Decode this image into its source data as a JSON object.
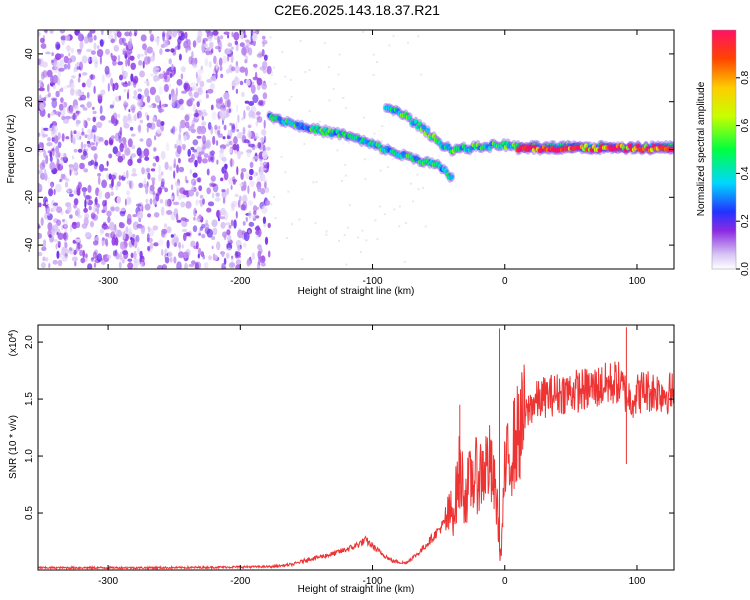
{
  "title": "C2E6.2025.143.18.37.R21",
  "chart_data": [
    {
      "type": "heatmap",
      "xlabel": "Height of straight line (km)",
      "ylabel": "Frequency (Hz)",
      "xlim": [
        -353,
        128
      ],
      "ylim": [
        -50,
        50
      ],
      "xticks": [
        -300,
        -200,
        -100,
        0,
        100
      ],
      "yticks": [
        -40,
        -20,
        0,
        20,
        40
      ],
      "colorbar": {
        "label": "Normalized spectral amplitude",
        "range": [
          0.0,
          1.0
        ],
        "ticks": [
          "0.0",
          "0.2",
          "0.4",
          "0.6",
          "0.8"
        ],
        "tick_values": [
          0.0,
          0.2,
          0.4,
          0.6,
          0.8
        ]
      },
      "noise_region": [
        -353,
        -178
      ],
      "traces": [
        {
          "points": [
            [
              -178,
              14
            ],
            [
              -150,
              9
            ],
            [
              -120,
              6
            ],
            [
              -100,
              2
            ],
            [
              -80,
              -2
            ],
            [
              -60,
              -5
            ],
            [
              -50,
              -7
            ],
            [
              -40,
              -12
            ]
          ],
          "amplitude": 0.45
        },
        {
          "points": [
            [
              -90,
              18
            ],
            [
              -75,
              14
            ],
            [
              -60,
              8
            ],
            [
              -50,
              3
            ],
            [
              -40,
              0
            ],
            [
              -20,
              1
            ],
            [
              0,
              2
            ],
            [
              10,
              1
            ],
            [
              128,
              1
            ]
          ],
          "amplitude": 0.5
        },
        {
          "points": [
            [
              10,
              0.5
            ],
            [
              128,
              0.5
            ]
          ],
          "amplitude": 0.95
        }
      ]
    },
    {
      "type": "line",
      "xlabel": "Height of straight line (km)",
      "ylabel": "SNR (10 * v/v)",
      "y_multiplier": "(x10",
      "y_multiplier_exp": "4",
      "y_multiplier_close": ")",
      "xlim": [
        -353,
        128
      ],
      "ylim": [
        0,
        2.15
      ],
      "xticks": [
        -300,
        -200,
        -100,
        0,
        100
      ],
      "yticks": [
        0.5,
        1.0,
        1.5,
        2.0
      ],
      "ytick_labels": [
        "0.5",
        "1.0",
        "1.5",
        "2.0"
      ],
      "series": [
        {
          "color": "#ee3333",
          "x": [
            -353,
            -250,
            -175,
            -160,
            -150,
            -130,
            -115,
            -105,
            -95,
            -85,
            -75,
            -65,
            -55,
            -45,
            -38,
            -34,
            -30,
            -25,
            -18,
            -12,
            -6,
            -3,
            0,
            5,
            12,
            20,
            30,
            45,
            60,
            75,
            85,
            92,
            95,
            105,
            128
          ],
          "y": [
            0.02,
            0.02,
            0.03,
            0.05,
            0.09,
            0.14,
            0.2,
            0.26,
            0.16,
            0.08,
            0.06,
            0.15,
            0.28,
            0.42,
            0.55,
            0.9,
            0.65,
            0.8,
            0.85,
            0.95,
            0.6,
            0.1,
            0.85,
            1.05,
            1.25,
            1.45,
            1.52,
            1.56,
            1.58,
            1.62,
            1.65,
            1.55,
            1.5,
            1.58,
            1.55
          ]
        }
      ],
      "spikes": [
        {
          "x": -34,
          "y": 1.45
        },
        {
          "x": -4,
          "y": 2.12
        },
        {
          "x": 92,
          "y": 2.13
        }
      ]
    }
  ]
}
